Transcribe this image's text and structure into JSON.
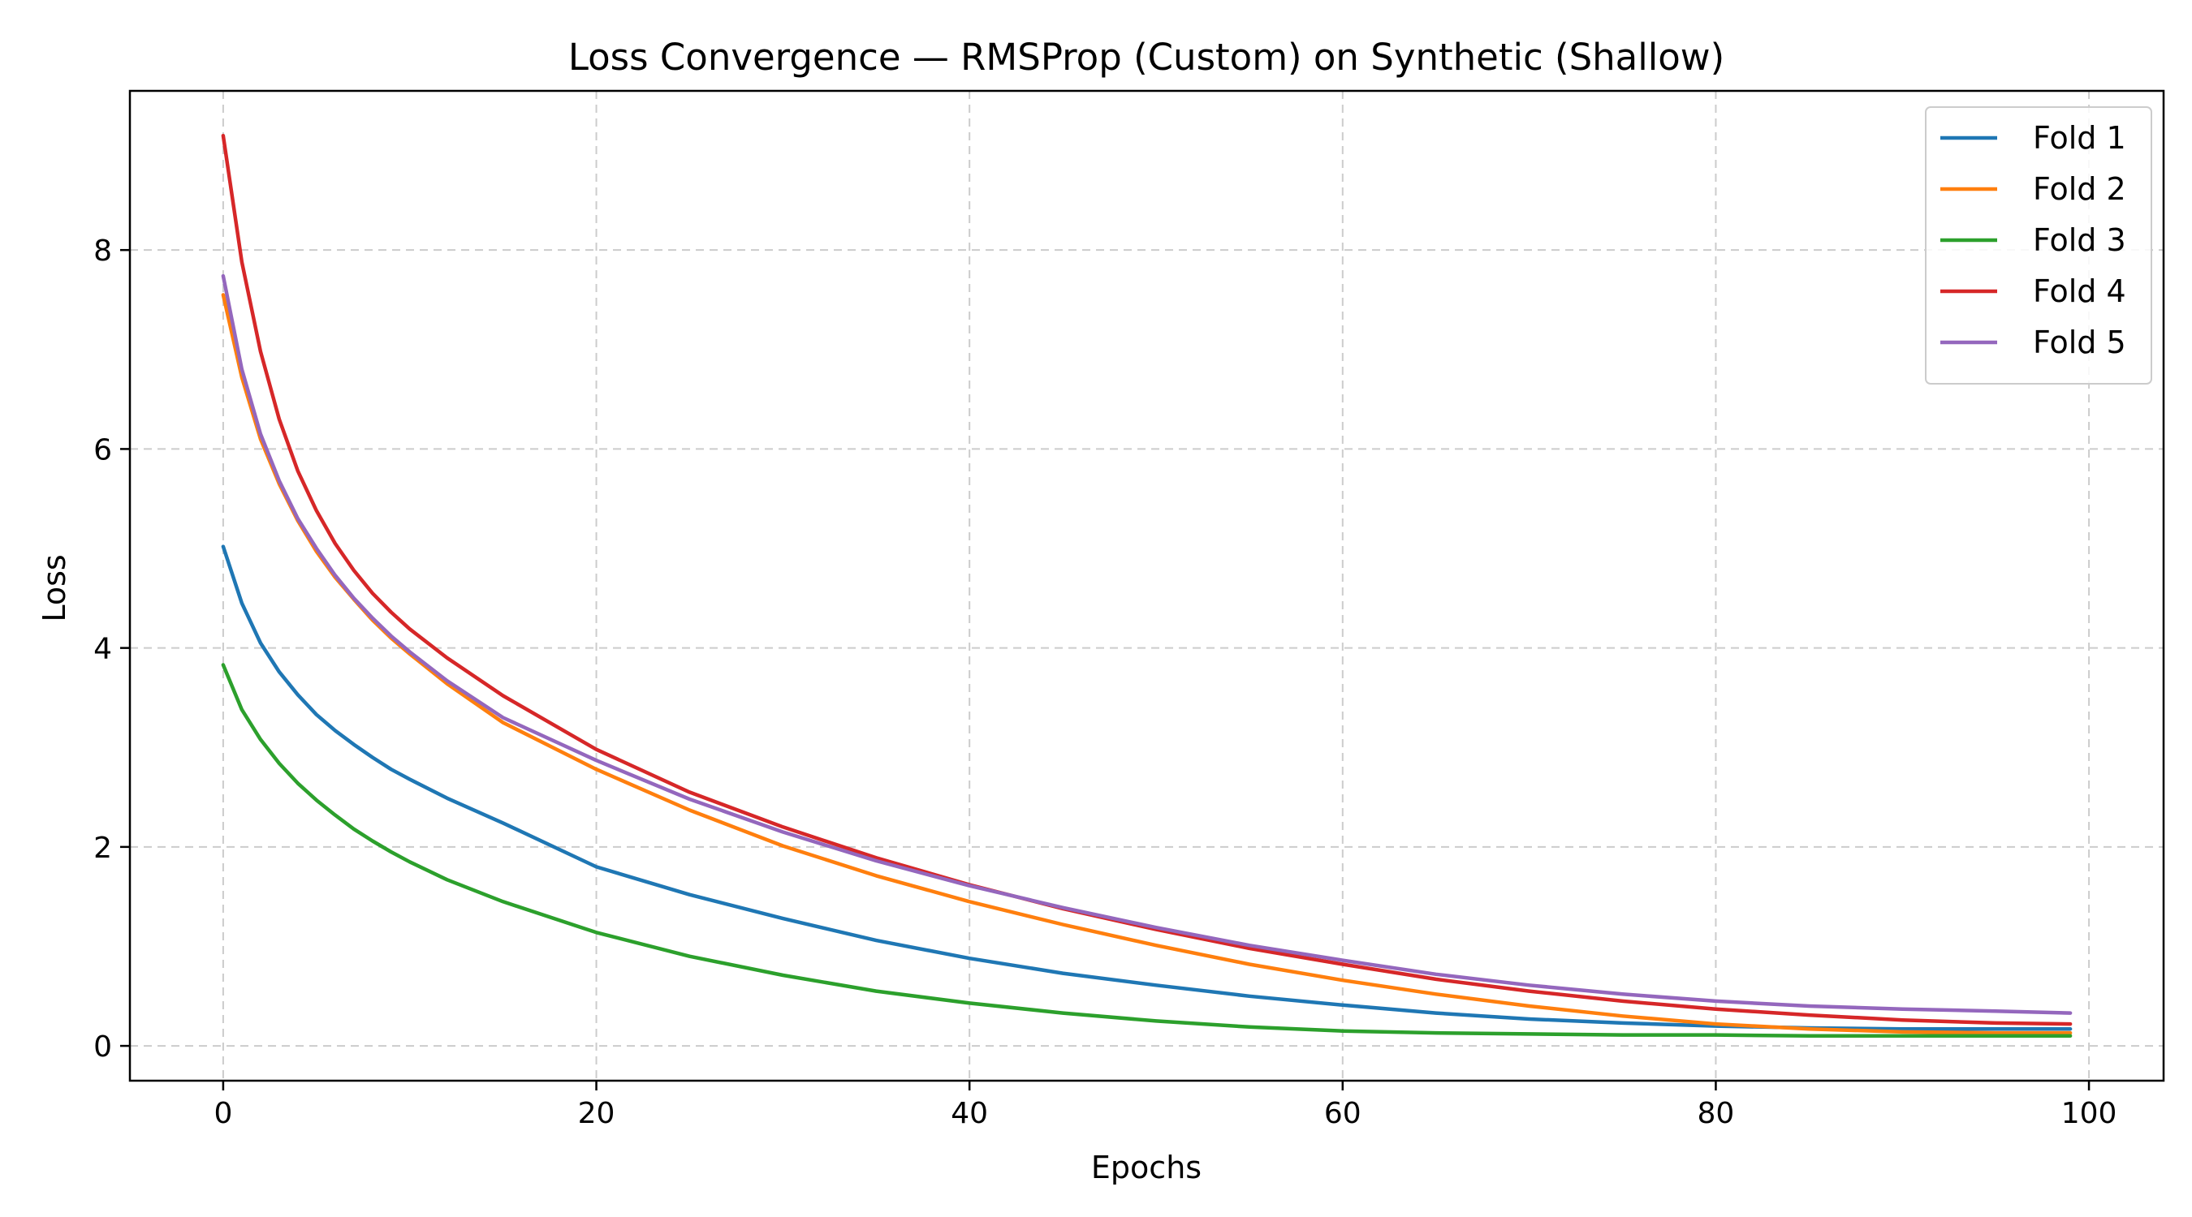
{
  "chart_data": {
    "type": "line",
    "title": "Loss Convergence — RMSProp (Custom) on Synthetic (Shallow)",
    "xlabel": "Epochs",
    "ylabel": "Loss",
    "xlim": [
      -5,
      104
    ],
    "ylim": [
      -0.35,
      9.6
    ],
    "xticks": [
      0,
      20,
      40,
      60,
      80,
      100
    ],
    "yticks": [
      0,
      2,
      4,
      6,
      8
    ],
    "grid": true,
    "legend_position": "top-right",
    "x": [
      0,
      1,
      2,
      3,
      4,
      5,
      6,
      7,
      8,
      9,
      10,
      12,
      15,
      20,
      25,
      30,
      35,
      40,
      45,
      50,
      55,
      60,
      65,
      70,
      75,
      80,
      85,
      90,
      95,
      99
    ],
    "series": [
      {
        "name": "Fold 1",
        "color": "#1f77b4",
        "values": [
          5.02,
          4.45,
          4.05,
          3.76,
          3.53,
          3.33,
          3.17,
          3.03,
          2.9,
          2.78,
          2.68,
          2.49,
          2.24,
          1.8,
          1.52,
          1.28,
          1.06,
          0.88,
          0.73,
          0.61,
          0.5,
          0.41,
          0.33,
          0.27,
          0.23,
          0.2,
          0.18,
          0.17,
          0.17,
          0.17
        ]
      },
      {
        "name": "Fold 2",
        "color": "#ff7f0e",
        "values": [
          7.55,
          6.72,
          6.1,
          5.65,
          5.28,
          4.97,
          4.71,
          4.49,
          4.28,
          4.1,
          3.94,
          3.64,
          3.25,
          2.78,
          2.37,
          2.01,
          1.71,
          1.45,
          1.22,
          1.01,
          0.82,
          0.66,
          0.52,
          0.4,
          0.3,
          0.22,
          0.17,
          0.14,
          0.13,
          0.13
        ]
      },
      {
        "name": "Fold 3",
        "color": "#2ca02c",
        "values": [
          3.83,
          3.38,
          3.08,
          2.84,
          2.64,
          2.47,
          2.32,
          2.18,
          2.06,
          1.95,
          1.85,
          1.67,
          1.45,
          1.14,
          0.9,
          0.71,
          0.55,
          0.43,
          0.33,
          0.25,
          0.19,
          0.15,
          0.13,
          0.12,
          0.11,
          0.11,
          0.1,
          0.1,
          0.1,
          0.1
        ]
      },
      {
        "name": "Fold 4",
        "color": "#d62728",
        "values": [
          9.15,
          7.88,
          6.98,
          6.3,
          5.78,
          5.38,
          5.05,
          4.78,
          4.55,
          4.36,
          4.19,
          3.9,
          3.52,
          2.98,
          2.55,
          2.2,
          1.89,
          1.62,
          1.38,
          1.17,
          0.98,
          0.82,
          0.67,
          0.55,
          0.45,
          0.37,
          0.31,
          0.26,
          0.23,
          0.22
        ]
      },
      {
        "name": "Fold 5",
        "color": "#9467bd",
        "values": [
          7.74,
          6.8,
          6.15,
          5.68,
          5.3,
          5.0,
          4.73,
          4.5,
          4.3,
          4.12,
          3.96,
          3.67,
          3.3,
          2.87,
          2.48,
          2.15,
          1.86,
          1.61,
          1.39,
          1.19,
          1.01,
          0.86,
          0.72,
          0.61,
          0.52,
          0.45,
          0.4,
          0.37,
          0.35,
          0.33
        ]
      }
    ]
  }
}
